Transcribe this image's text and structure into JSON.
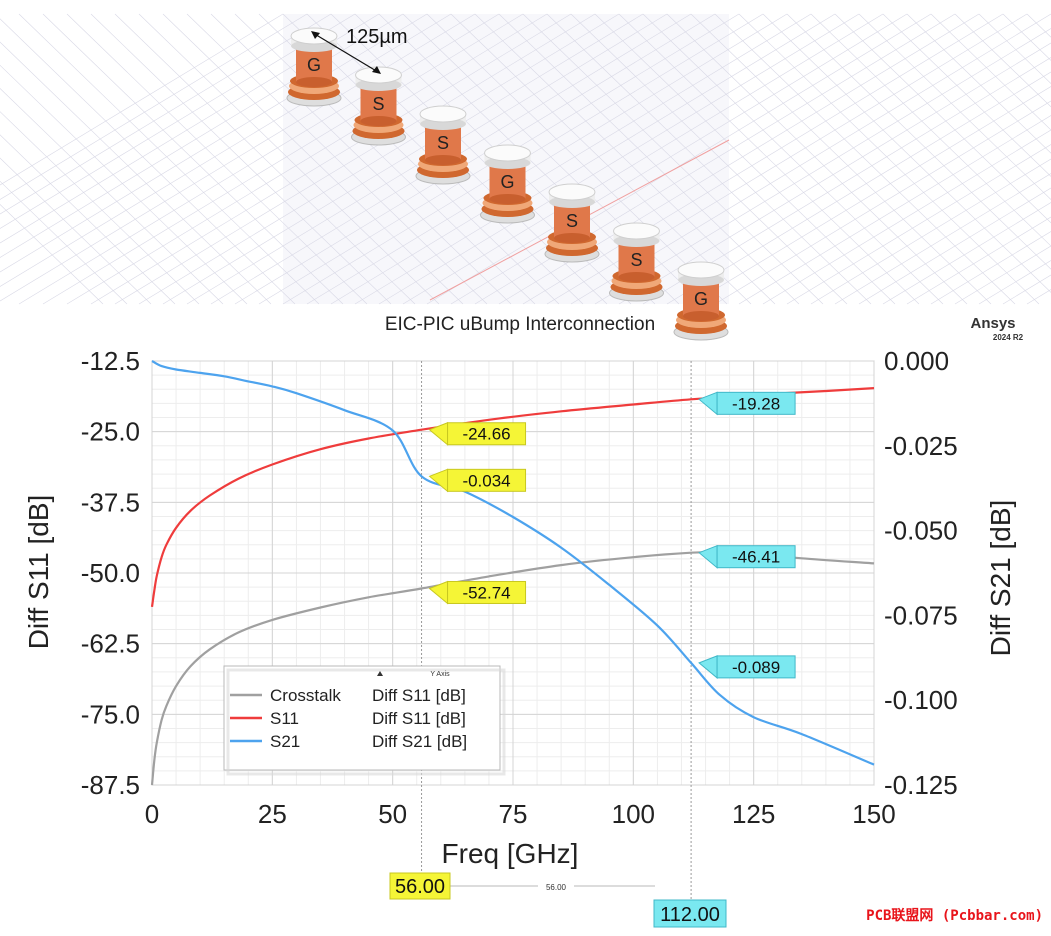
{
  "illustration": {
    "dimension_label": "125µm",
    "bump_labels": [
      "G",
      "S",
      "S",
      "G",
      "S",
      "S",
      "G"
    ],
    "colors": {
      "copper": "#e0784a",
      "cap": "#eeeeee",
      "grid": "#d9d9e6",
      "accent_line": "#f0a0a0"
    }
  },
  "header": {
    "subtitle": "EIC-PIC uBump Interconnection",
    "brand": "Ansys",
    "version": "2024 R2"
  },
  "watermark": "PCB联盟网 (Pcbbar.com)",
  "chart_data": {
    "type": "line",
    "xlabel": "Freq [GHz]",
    "ylabel_left": "Diff S11 [dB]",
    "ylabel_right": "Diff S21 [dB]",
    "xlim": [
      0,
      150
    ],
    "ylim_left": [
      -87.5,
      -12.5
    ],
    "ylim_right": [
      -0.125,
      0.0
    ],
    "x_ticks": [
      "0",
      "25",
      "50",
      "75",
      "100",
      "125",
      "150"
    ],
    "y_left_ticks": [
      "-12.5",
      "-25.0",
      "-37.5",
      "-50.0",
      "-62.5",
      "-75.0",
      "-87.5"
    ],
    "y_right_ticks": [
      "0.000",
      "-0.025",
      "-0.050",
      "-0.075",
      "-0.100",
      "-0.125"
    ],
    "grid": true,
    "legend": {
      "placement": "bottom-left",
      "header": "Y Axis",
      "entries": [
        {
          "name": "Crosstalk",
          "axis": "Diff S11 [dB]",
          "color": "#a0a0a0"
        },
        {
          "name": "S11",
          "axis": "Diff S11 [dB]",
          "color": "#ef3c3c"
        },
        {
          "name": "S21",
          "axis": "Diff S21 [dB]",
          "color": "#4da3ee"
        }
      ]
    },
    "series": [
      {
        "name": "Crosstalk",
        "axis": "left",
        "color": "#a0a0a0",
        "x": [
          0,
          0.5,
          1,
          2,
          3,
          5,
          8,
          12,
          18,
          25,
          35,
          45,
          56,
          70,
          85,
          100,
          112,
          120,
          125,
          135,
          150
        ],
        "y": [
          -87.5,
          -83,
          -80,
          -76,
          -73.5,
          -70,
          -66.5,
          -63.5,
          -60.5,
          -58.3,
          -56.1,
          -54.3,
          -52.74,
          -50.6,
          -48.6,
          -47.2,
          -46.41,
          -46.3,
          -46.5,
          -47.4,
          -48.3
        ]
      },
      {
        "name": "S11",
        "axis": "left",
        "color": "#ef3c3c",
        "x": [
          0,
          0.5,
          1,
          2,
          3,
          5,
          8,
          12,
          18,
          25,
          35,
          45,
          56,
          70,
          85,
          100,
          112,
          125,
          140,
          150
        ],
        "y": [
          -56,
          -53,
          -50.5,
          -47.2,
          -45,
          -42,
          -39,
          -36.3,
          -33.3,
          -30.8,
          -28.1,
          -26.2,
          -24.66,
          -22.9,
          -21.4,
          -20.2,
          -19.28,
          -18.5,
          -17.8,
          -17.3
        ]
      },
      {
        "name": "S21",
        "axis": "right",
        "color": "#4da3ee",
        "x": [
          0,
          2,
          5,
          10,
          15,
          20,
          25,
          30,
          40,
          50,
          56,
          65,
          75,
          85,
          95,
          105,
          112,
          118,
          125,
          135,
          150
        ],
        "y": [
          0.0,
          -0.0015,
          -0.0025,
          -0.0035,
          -0.0045,
          -0.006,
          -0.0075,
          -0.0095,
          -0.0145,
          -0.0205,
          -0.034,
          -0.0385,
          -0.046,
          -0.055,
          -0.066,
          -0.078,
          -0.089,
          -0.0985,
          -0.105,
          -0.11,
          -0.119
        ]
      }
    ],
    "markers": [
      {
        "x": 56,
        "label": "56.00",
        "color": "#f5f536"
      },
      {
        "x": 112,
        "label": "112.00",
        "color": "#7ae8f0"
      }
    ],
    "delta_label": "56.00",
    "annotations": [
      {
        "series": "S11",
        "x": 56,
        "y": -24.66,
        "axis": "left",
        "label": "-24.66",
        "color": "#f5f536"
      },
      {
        "series": "S21",
        "x": 56,
        "y": -0.034,
        "axis": "right",
        "label": "-0.034",
        "color": "#f5f536"
      },
      {
        "series": "Crosstalk",
        "x": 56,
        "y": -52.74,
        "axis": "left",
        "label": "-52.74",
        "color": "#f5f536"
      },
      {
        "series": "S11",
        "x": 112,
        "y": -19.28,
        "axis": "left",
        "label": "-19.28",
        "color": "#7ae8f0"
      },
      {
        "series": "Crosstalk",
        "x": 112,
        "y": -46.41,
        "axis": "left",
        "label": "-46.41",
        "color": "#7ae8f0"
      },
      {
        "series": "S21",
        "x": 112,
        "y": -0.089,
        "axis": "right",
        "label": "-0.089",
        "color": "#7ae8f0"
      }
    ]
  }
}
